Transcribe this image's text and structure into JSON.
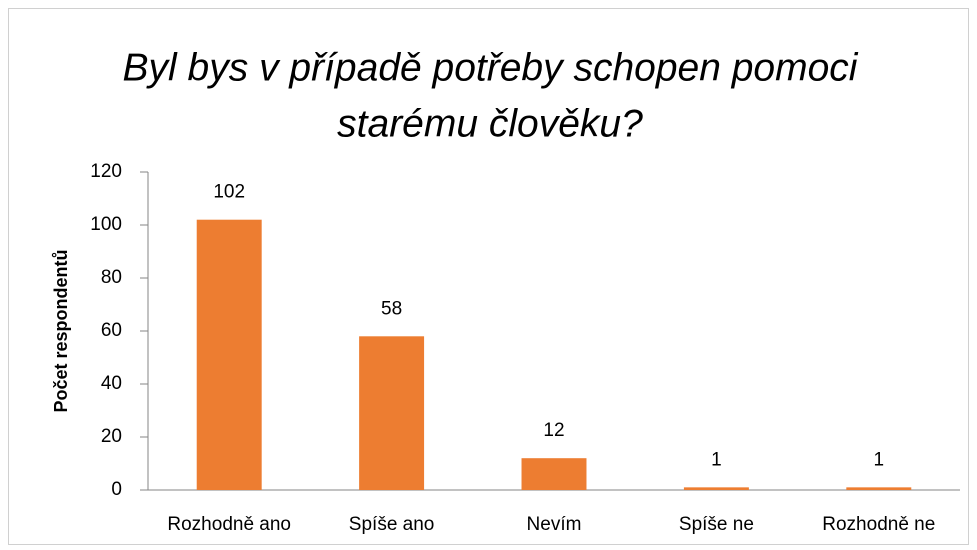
{
  "chart_data": {
    "type": "bar",
    "title": [
      "Byl bys v případě potřeby schopen pomoci",
      "starému člověku?"
    ],
    "y_axis_label": "Počet respondentů",
    "categories": [
      "Rozhodně ano",
      "Spíše ano",
      "Nevím",
      "Spíše ne",
      "Rozhodně ne"
    ],
    "values": [
      102,
      58,
      12,
      1,
      1
    ],
    "color": "#ed7d31",
    "ylim": [
      0,
      120
    ],
    "yticks": [
      0,
      20,
      40,
      60,
      80,
      100,
      120
    ],
    "grid": false
  }
}
